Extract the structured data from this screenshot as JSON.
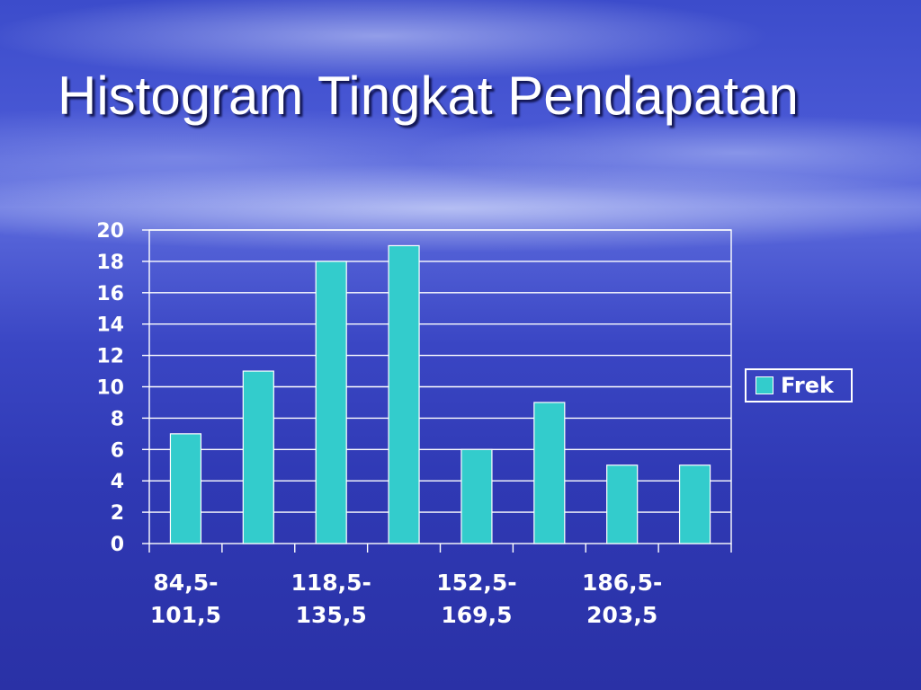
{
  "slide": {
    "title": "Histogram Tingkat Pendapatan"
  },
  "colors": {
    "bar": "#33cccc",
    "axis": "#ffffff",
    "grid": "#ffffff",
    "text": "#ffffff"
  },
  "chart_data": {
    "type": "bar",
    "categories": [
      "84,5-101,5",
      "",
      "118,5-135,5",
      "",
      "152,5-169,5",
      "",
      "186,5-203,5",
      ""
    ],
    "category_labels": [
      {
        "line1": "84,5-",
        "line2": "101,5",
        "slot": 0
      },
      {
        "line1": "118,5-",
        "line2": "135,5",
        "slot": 2
      },
      {
        "line1": "152,5-",
        "line2": "169,5",
        "slot": 4
      },
      {
        "line1": "186,5-",
        "line2": "203,5",
        "slot": 6
      }
    ],
    "series": [
      {
        "name": "Frek",
        "values": [
          7,
          11,
          18,
          19,
          6,
          9,
          5,
          5
        ]
      }
    ],
    "ylim": [
      0,
      20
    ],
    "yticks": [
      0,
      2,
      4,
      6,
      8,
      10,
      12,
      14,
      16,
      18,
      20
    ],
    "grid": true,
    "legend": "right",
    "xlabel": "",
    "ylabel": ""
  }
}
